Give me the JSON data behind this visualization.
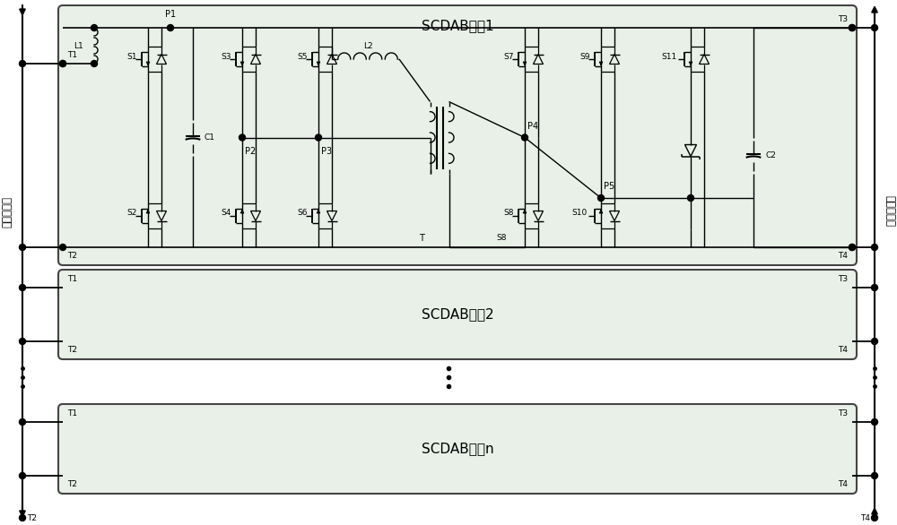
{
  "bg_color": "#ffffff",
  "box_fill": "#e8f0e8",
  "box_edge": "#444444",
  "line_color": "#000000",
  "text_color": "#000000",
  "title1": "SCDAB单元1",
  "title2": "SCDAB单元2",
  "title3": "SCDAB单元n",
  "label_hv": "高压直流侧",
  "label_lv": "低压直流侧",
  "figsize": [
    10.0,
    5.86
  ],
  "dpi": 100
}
